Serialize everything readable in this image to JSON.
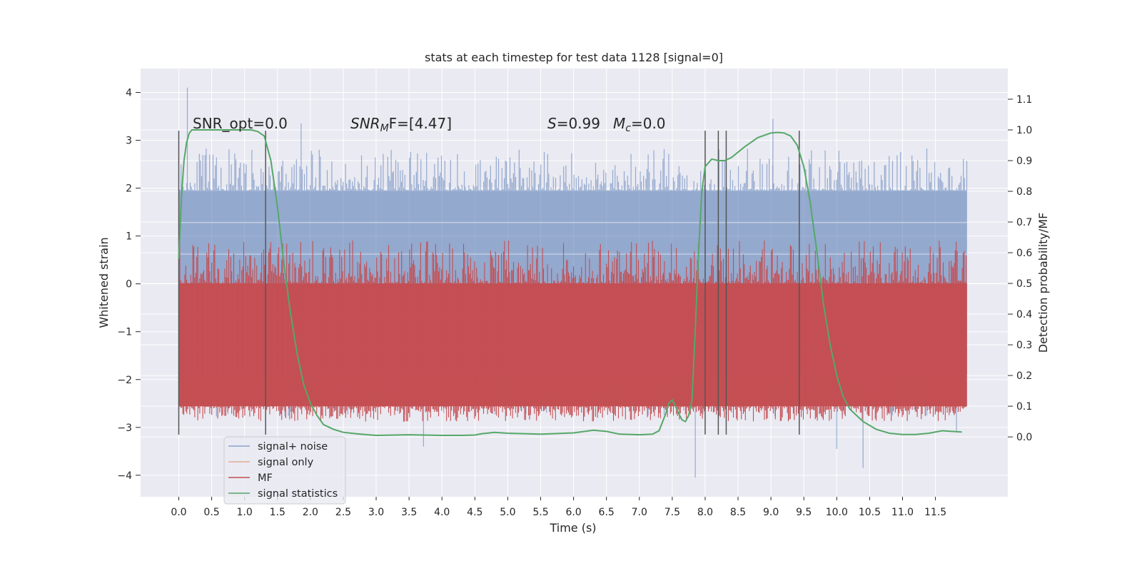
{
  "chart_data": {
    "type": "line",
    "title": "stats at each timestep for test data 1128 [signal=0]",
    "xlabel": "Time (s)",
    "ylabel_left": "Whitened strain",
    "ylabel_right": "Detection probability/MF",
    "xlim": [
      -0.58,
      12.6
    ],
    "ylim_left": [
      -4.45,
      4.5
    ],
    "ylim_right": [
      -0.195,
      1.2
    ],
    "x_ticks": [
      "0.0",
      "0.5",
      "1.0",
      "1.5",
      "2.0",
      "2.5",
      "3.0",
      "3.5",
      "4.0",
      "4.5",
      "5.0",
      "5.5",
      "6.0",
      "6.5",
      "7.0",
      "7.5",
      "8.0",
      "8.5",
      "9.0",
      "9.5",
      "10.0",
      "10.5",
      "11.0",
      "11.5"
    ],
    "y_ticks_left": [
      "4",
      "3",
      "2",
      "1",
      "0",
      "−1",
      "−2",
      "−3",
      "−4"
    ],
    "y_ticks_right": [
      "1.1",
      "1.0",
      "0.9",
      "0.8",
      "0.7",
      "0.6",
      "0.5",
      "0.4",
      "0.3",
      "0.2",
      "0.1",
      "0.0"
    ],
    "grid": true,
    "legend_position": "lower-left",
    "annotations": {
      "snr_opt": {
        "prefix": "SNR_opt=0.0"
      },
      "snr_mf": {
        "main": "SNR",
        "sub": "M",
        "tail": "F=[4.47]"
      },
      "s_stat": {
        "main": "S",
        "tail": "=0.99"
      },
      "mc": {
        "main": "M",
        "sub": "c",
        "tail": "=0.0"
      }
    },
    "vertical_lines_x": [
      0.0,
      1.32,
      8.0,
      8.2,
      8.32,
      9.43
    ],
    "vertical_lines_range_left": [
      -3.15,
      3.2
    ],
    "series": [
      {
        "name": "signal+ noise",
        "color": "#4c72b0",
        "kind": "noise-band",
        "x_range": [
          0.0,
          11.98
        ],
        "inner_band": [
          -1.9,
          1.95
        ],
        "typical_peak": 2.6,
        "max": 4.1,
        "min": -4.05
      },
      {
        "name": "signal only",
        "color": "#dd8452",
        "kind": "line",
        "x": [],
        "y": []
      },
      {
        "name": "MF",
        "color": "#c44e52",
        "kind": "noise-band-right",
        "x_range": [
          0.0,
          11.98
        ],
        "band": [
          0.05,
          0.54
        ],
        "core": [
          0.1,
          0.5
        ],
        "max": 0.64
      },
      {
        "name": "signal statistics",
        "color": "#55a868",
        "kind": "line-right",
        "x": [
          0.0,
          0.04,
          0.08,
          0.12,
          0.16,
          0.2,
          0.3,
          0.5,
          0.7,
          0.9,
          1.0,
          1.1,
          1.2,
          1.3,
          1.4,
          1.5,
          1.6,
          1.7,
          1.8,
          1.9,
          2.0,
          2.1,
          2.2,
          2.35,
          2.5,
          2.7,
          3.0,
          3.5,
          4.0,
          4.3,
          4.5,
          4.6,
          4.8,
          5.0,
          5.5,
          6.0,
          6.3,
          6.5,
          6.7,
          7.0,
          7.2,
          7.3,
          7.4,
          7.45,
          7.5,
          7.55,
          7.6,
          7.65,
          7.7,
          7.75,
          7.8,
          7.85,
          7.9,
          7.95,
          8.0,
          8.1,
          8.2,
          8.3,
          8.4,
          8.6,
          8.8,
          9.0,
          9.1,
          9.2,
          9.3,
          9.4,
          9.5,
          9.6,
          9.7,
          9.8,
          9.9,
          10.0,
          10.1,
          10.2,
          10.4,
          10.6,
          10.8,
          11.0,
          11.2,
          11.4,
          11.6,
          11.9
        ],
        "y": [
          0.58,
          0.78,
          0.9,
          0.96,
          0.99,
          1.0,
          1.0,
          1.0,
          1.0,
          1.0,
          1.0,
          1.0,
          0.995,
          0.98,
          0.9,
          0.75,
          0.56,
          0.4,
          0.27,
          0.17,
          0.11,
          0.07,
          0.04,
          0.025,
          0.015,
          0.01,
          0.005,
          0.007,
          0.005,
          0.005,
          0.006,
          0.01,
          0.015,
          0.012,
          0.009,
          0.013,
          0.022,
          0.018,
          0.009,
          0.007,
          0.009,
          0.02,
          0.075,
          0.11,
          0.12,
          0.1,
          0.075,
          0.055,
          0.05,
          0.07,
          0.12,
          0.35,
          0.6,
          0.8,
          0.88,
          0.905,
          0.9,
          0.9,
          0.91,
          0.945,
          0.975,
          0.99,
          0.992,
          0.99,
          0.98,
          0.95,
          0.88,
          0.76,
          0.6,
          0.43,
          0.3,
          0.2,
          0.13,
          0.09,
          0.05,
          0.025,
          0.012,
          0.008,
          0.008,
          0.012,
          0.02,
          0.016
        ]
      }
    ]
  }
}
